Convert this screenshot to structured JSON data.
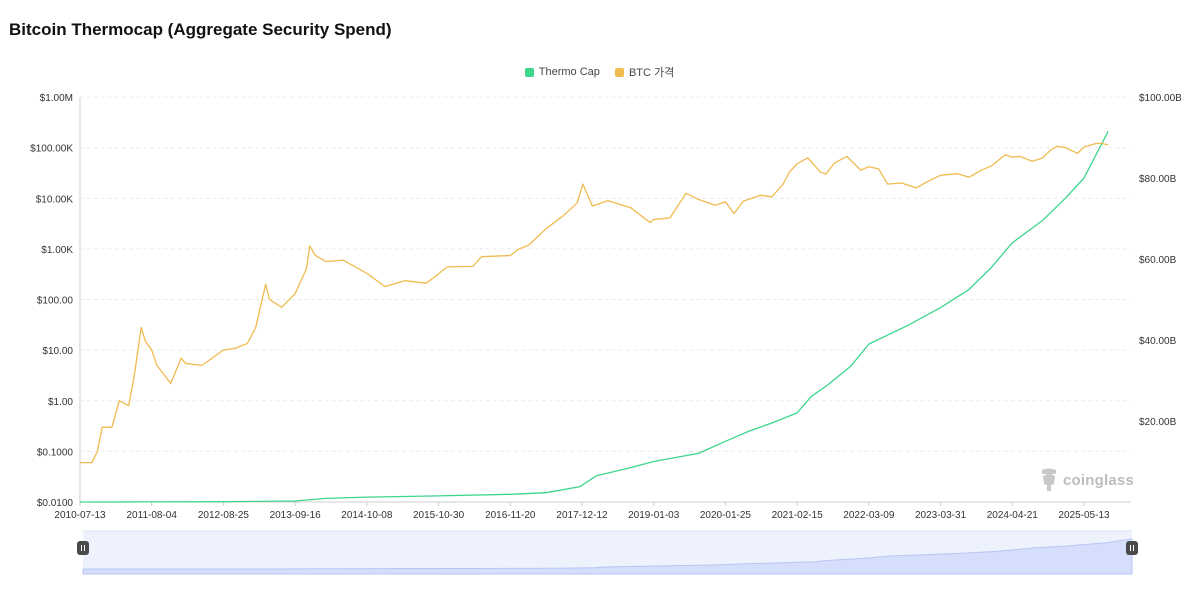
{
  "title": "Bitcoin Thermocap (Aggregate Security Spend)",
  "legend": [
    {
      "label": "Thermo Cap",
      "color": "#3dd68c"
    },
    {
      "label": "BTC 가격",
      "color": "#f0bb4f"
    }
  ],
  "watermark": "coinglass",
  "chart_data": {
    "type": "line",
    "title": "Bitcoin Thermocap (Aggregate Security Spend)",
    "x_tick_labels": [
      "2010-07-13",
      "2011-08-04",
      "2012-08-25",
      "2013-09-16",
      "2014-10-08",
      "2015-10-30",
      "2016-11-20",
      "2017-12-12",
      "2019-01-03",
      "2020-01-25",
      "2021-02-15",
      "2022-03-09",
      "2023-03-31",
      "2024-04-21",
      "2025-05-13"
    ],
    "x_range": [
      "2010-07-13",
      "2025-09-20"
    ],
    "y_left": {
      "scale": "log",
      "range": [
        0.01,
        1000000
      ],
      "tick_labels": [
        "$1.00M",
        "$100.00K",
        "$10.00K",
        "$1.00K",
        "$100.00",
        "$10.00",
        "$1.00",
        "$0.1000",
        "$0.0100"
      ]
    },
    "y_right": {
      "scale": "linear",
      "range": [
        0,
        100
      ],
      "unit": "B USD",
      "tick_labels": [
        "$100.00B",
        "$80.00B",
        "$60.00B",
        "$40.00B",
        "$20.00B"
      ]
    },
    "grid": true,
    "legend_position": "top-center",
    "series": [
      {
        "name": "Thermo Cap",
        "axis": "right",
        "color": "#3dd68c",
        "points": [
          [
            "2010-07-13",
            0
          ],
          [
            "2011-08-04",
            0.02
          ],
          [
            "2012-08-25",
            0.08
          ],
          [
            "2013-09-16",
            0.25
          ],
          [
            "2014-03-01",
            0.9
          ],
          [
            "2014-10-08",
            1.2
          ],
          [
            "2015-10-30",
            1.5
          ],
          [
            "2016-11-20",
            1.9
          ],
          [
            "2017-06-01",
            2.3
          ],
          [
            "2017-12-01",
            3.8
          ],
          [
            "2018-03-01",
            6.5
          ],
          [
            "2018-09-01",
            8.5
          ],
          [
            "2019-01-03",
            10.0
          ],
          [
            "2019-09-01",
            12.0
          ],
          [
            "2020-01-25",
            15.0
          ],
          [
            "2020-06-01",
            17.5
          ],
          [
            "2020-10-01",
            19.5
          ],
          [
            "2021-02-15",
            22.0
          ],
          [
            "2021-05-01",
            26.0
          ],
          [
            "2021-08-01",
            29.0
          ],
          [
            "2021-12-01",
            33.5
          ],
          [
            "2022-03-09",
            39.0
          ],
          [
            "2022-10-01",
            43.5
          ],
          [
            "2023-03-31",
            48.0
          ],
          [
            "2023-09-01",
            52.5
          ],
          [
            "2024-01-01",
            58.0
          ],
          [
            "2024-04-21",
            64.0
          ],
          [
            "2024-10-01",
            69.5
          ],
          [
            "2025-02-01",
            75.0
          ],
          [
            "2025-05-13",
            80.0
          ],
          [
            "2025-09-20",
            91.5
          ]
        ]
      },
      {
        "name": "BTC 가격",
        "axis": "left",
        "color": "#f0bb4f",
        "points": [
          [
            "2010-07-13",
            0.06
          ],
          [
            "2010-09-15",
            0.06
          ],
          [
            "2010-10-15",
            0.1
          ],
          [
            "2010-11-10",
            0.3
          ],
          [
            "2011-01-01",
            0.3
          ],
          [
            "2011-02-10",
            1.0
          ],
          [
            "2011-04-01",
            0.8
          ],
          [
            "2011-05-01",
            3.0
          ],
          [
            "2011-06-08",
            28.0
          ],
          [
            "2011-07-01",
            15.0
          ],
          [
            "2011-08-04",
            10.0
          ],
          [
            "2011-09-01",
            5.0
          ],
          [
            "2011-11-15",
            2.2
          ],
          [
            "2012-01-10",
            7.0
          ],
          [
            "2012-02-01",
            5.5
          ],
          [
            "2012-05-01",
            5.0
          ],
          [
            "2012-08-25",
            10.0
          ],
          [
            "2012-11-01",
            11.0
          ],
          [
            "2013-01-01",
            13.5
          ],
          [
            "2013-02-15",
            28.0
          ],
          [
            "2013-04-10",
            200.0
          ],
          [
            "2013-05-01",
            100.0
          ],
          [
            "2013-07-05",
            70.0
          ],
          [
            "2013-09-16",
            130.0
          ],
          [
            "2013-11-15",
            400.0
          ],
          [
            "2013-12-04",
            1150.0
          ],
          [
            "2014-01-01",
            750.0
          ],
          [
            "2014-03-01",
            560.0
          ],
          [
            "2014-06-01",
            600.0
          ],
          [
            "2014-10-08",
            330.0
          ],
          [
            "2015-01-14",
            180.0
          ],
          [
            "2015-05-01",
            235.0
          ],
          [
            "2015-08-24",
            210.0
          ],
          [
            "2015-10-30",
            320.0
          ],
          [
            "2015-12-15",
            440.0
          ],
          [
            "2016-05-01",
            450.0
          ],
          [
            "2016-06-18",
            700.0
          ],
          [
            "2016-11-20",
            740.0
          ],
          [
            "2017-01-01",
            970.0
          ],
          [
            "2017-03-01",
            1200.0
          ],
          [
            "2017-06-01",
            2500.0
          ],
          [
            "2017-09-01",
            4500.0
          ],
          [
            "2017-11-15",
            8000.0
          ],
          [
            "2017-12-17",
            19000.0
          ],
          [
            "2018-02-06",
            7000.0
          ],
          [
            "2018-05-01",
            9000.0
          ],
          [
            "2018-09-01",
            6500.0
          ],
          [
            "2018-12-15",
            3300.0
          ],
          [
            "2019-01-03",
            3800.0
          ],
          [
            "2019-04-01",
            4100.0
          ],
          [
            "2019-06-26",
            12500.0
          ],
          [
            "2019-09-01",
            9500.0
          ],
          [
            "2019-12-01",
            7300.0
          ],
          [
            "2020-01-25",
            8500.0
          ],
          [
            "2020-03-12",
            5000.0
          ],
          [
            "2020-05-01",
            8800.0
          ],
          [
            "2020-08-01",
            11500.0
          ],
          [
            "2020-10-01",
            10700.0
          ],
          [
            "2020-12-01",
            19000.0
          ],
          [
            "2021-01-05",
            33000.0
          ],
          [
            "2021-02-15",
            48000.0
          ],
          [
            "2021-04-14",
            63000.0
          ],
          [
            "2021-06-20",
            33000.0
          ],
          [
            "2021-07-20",
            30000.0
          ],
          [
            "2021-09-05",
            50000.0
          ],
          [
            "2021-11-10",
            67000.0
          ],
          [
            "2022-01-24",
            36000.0
          ],
          [
            "2022-03-09",
            42000.0
          ],
          [
            "2022-05-01",
            38000.0
          ],
          [
            "2022-06-18",
            19000.0
          ],
          [
            "2022-09-01",
            20000.0
          ],
          [
            "2022-11-20",
            16000.0
          ],
          [
            "2023-01-15",
            21000.0
          ],
          [
            "2023-03-31",
            28500.0
          ],
          [
            "2023-07-01",
            30500.0
          ],
          [
            "2023-09-01",
            26000.0
          ],
          [
            "2023-11-01",
            35000.0
          ],
          [
            "2024-01-01",
            44000.0
          ],
          [
            "2024-03-14",
            72000.0
          ],
          [
            "2024-04-21",
            65000.0
          ],
          [
            "2024-06-01",
            67000.0
          ],
          [
            "2024-08-05",
            54000.0
          ],
          [
            "2024-10-01",
            62000.0
          ],
          [
            "2024-11-15",
            90000.0
          ],
          [
            "2024-12-17",
            106000.0
          ],
          [
            "2025-02-01",
            100000.0
          ],
          [
            "2025-04-08",
            77000.0
          ],
          [
            "2025-05-13",
            103000.0
          ],
          [
            "2025-07-14",
            120000.0
          ],
          [
            "2025-08-14",
            122000.0
          ],
          [
            "2025-09-20",
            113000.0
          ]
        ]
      }
    ]
  },
  "navigator": {
    "series_ref": "Thermo Cap",
    "handles": [
      "start",
      "end"
    ]
  }
}
